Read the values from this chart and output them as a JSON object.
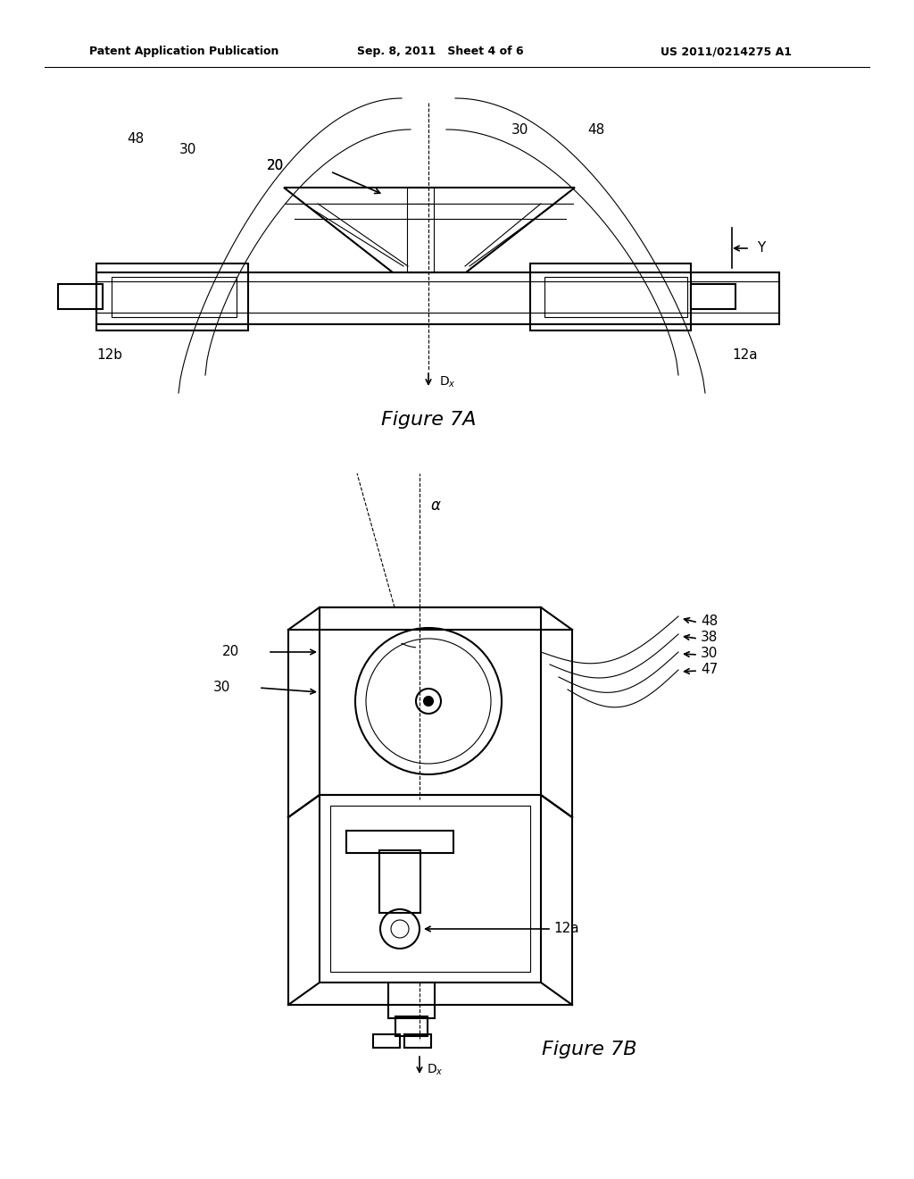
{
  "background_color": "#ffffff",
  "header_left": "Patent Application Publication",
  "header_mid": "Sep. 8, 2011   Sheet 4 of 6",
  "header_right": "US 2011/0214275 A1",
  "fig7a_caption": "Figure 7A",
  "fig7b_caption": "Figure 7B",
  "line_color": "#000000",
  "text_color": "#000000",
  "lw_main": 1.5,
  "lw_thin": 0.8,
  "lw_thick": 2.2
}
